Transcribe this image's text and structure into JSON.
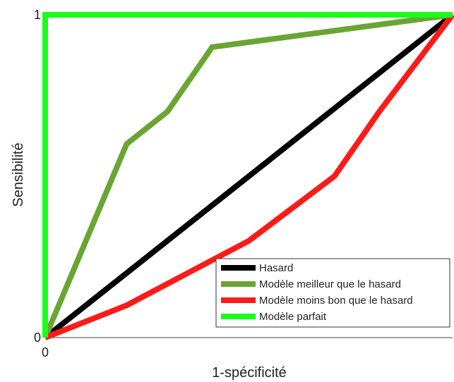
{
  "chart_data": {
    "type": "line",
    "title": "",
    "xlabel": "1-spécificité",
    "ylabel": "Sensibilité",
    "xlim": [
      0,
      1
    ],
    "ylim": [
      0,
      1
    ],
    "x_tick_labels": [
      "0"
    ],
    "y_tick_labels": [
      "0",
      "1"
    ],
    "grid": false,
    "legend_position": "bottom-right",
    "series": [
      {
        "name": "Hasard",
        "color": "#000000",
        "x": [
          0,
          1
        ],
        "y": [
          0,
          1
        ]
      },
      {
        "name": "Modèle meilleur que le hasard",
        "color": "#6aa534",
        "x": [
          0,
          0.2,
          0.3,
          0.41,
          1
        ],
        "y": [
          0,
          0.6,
          0.7,
          0.9,
          1
        ]
      },
      {
        "name": "Modèle moins bon que le hasard",
        "color": "#ff1a1a",
        "x": [
          0,
          0.2,
          0.5,
          0.71,
          0.82,
          1
        ],
        "y": [
          0,
          0.1,
          0.3,
          0.5,
          0.7,
          1
        ]
      },
      {
        "name": "Modèle parfait",
        "color": "#1aff1a",
        "x": [
          0,
          0,
          1
        ],
        "y": [
          0,
          1,
          1
        ]
      }
    ]
  }
}
